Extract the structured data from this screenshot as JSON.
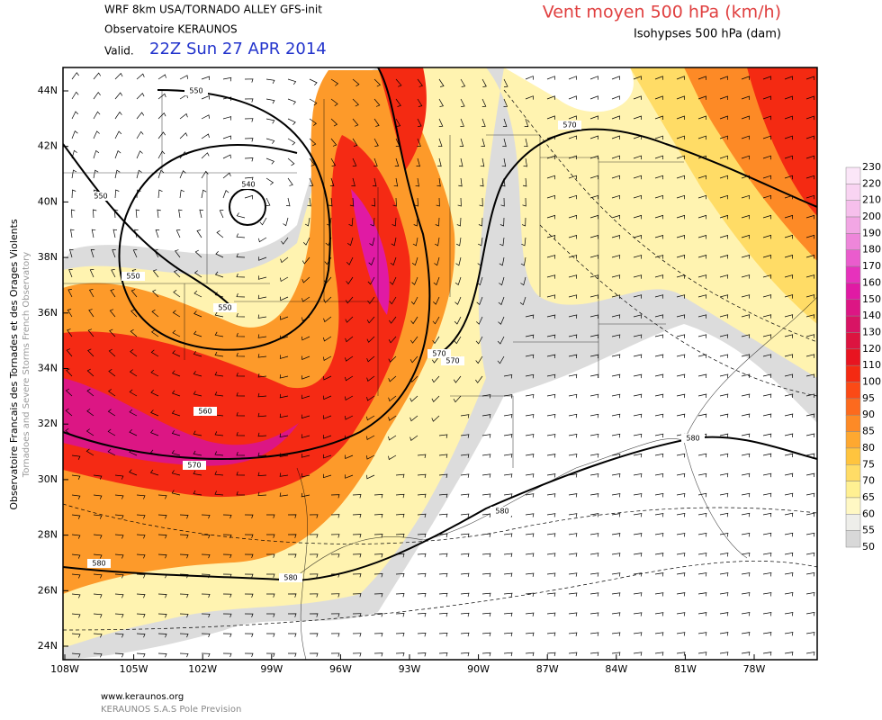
{
  "header": {
    "model": "WRF 8km USA/TORNADO ALLEY   GFS-init",
    "org": "Observatoire KERAUNOS",
    "valid_label": "Valid.",
    "valid_time": "22Z Sun 27 APR 2014",
    "field": "Vent moyen 500 hPa (km/h)",
    "contours": "Isohypses 500 hPa (dam)"
  },
  "map": {
    "lat_labels": [
      "44N",
      "42N",
      "40N",
      "38N",
      "36N",
      "34N",
      "32N",
      "30N",
      "28N",
      "26N",
      "24N"
    ],
    "lon_labels": [
      "108W",
      "105W",
      "102W",
      "99W",
      "96W",
      "93W",
      "90W",
      "87W",
      "84W",
      "81W",
      "78W"
    ],
    "contour_labels": [
      "550",
      "540",
      "550",
      "550",
      "550",
      "570",
      "570",
      "560",
      "570",
      "570",
      "580",
      "580",
      "580",
      "580"
    ]
  },
  "colorbar": {
    "levels": [
      230,
      220,
      210,
      200,
      190,
      180,
      170,
      160,
      150,
      140,
      130,
      120,
      110,
      100,
      95,
      90,
      85,
      80,
      75,
      70,
      65,
      60,
      55,
      50
    ],
    "colors": [
      "#fbe6f8",
      "#f9d4f2",
      "#f6bfec",
      "#f2a6e4",
      "#ee86da",
      "#ea5ccd",
      "#e632bc",
      "#e01aa4",
      "#dc1684",
      "#d81464",
      "#dc1440",
      "#e81420",
      "#f42a12",
      "#fb4a16",
      "#fc6a1e",
      "#fd8a26",
      "#fea830",
      "#ffc43e",
      "#ffdc66",
      "#fff092",
      "#fff8c4",
      "#eeeeea",
      "#d8d8d8"
    ]
  },
  "side_text": [
    "Observatoire Francais des Tornades et des Orages Violents",
    "Tornadoes and Severe Storms French Observatory"
  ],
  "footer": [
    "www.keraunos.org",
    "KERAUNOS S.A.S Pole Prevision"
  ]
}
